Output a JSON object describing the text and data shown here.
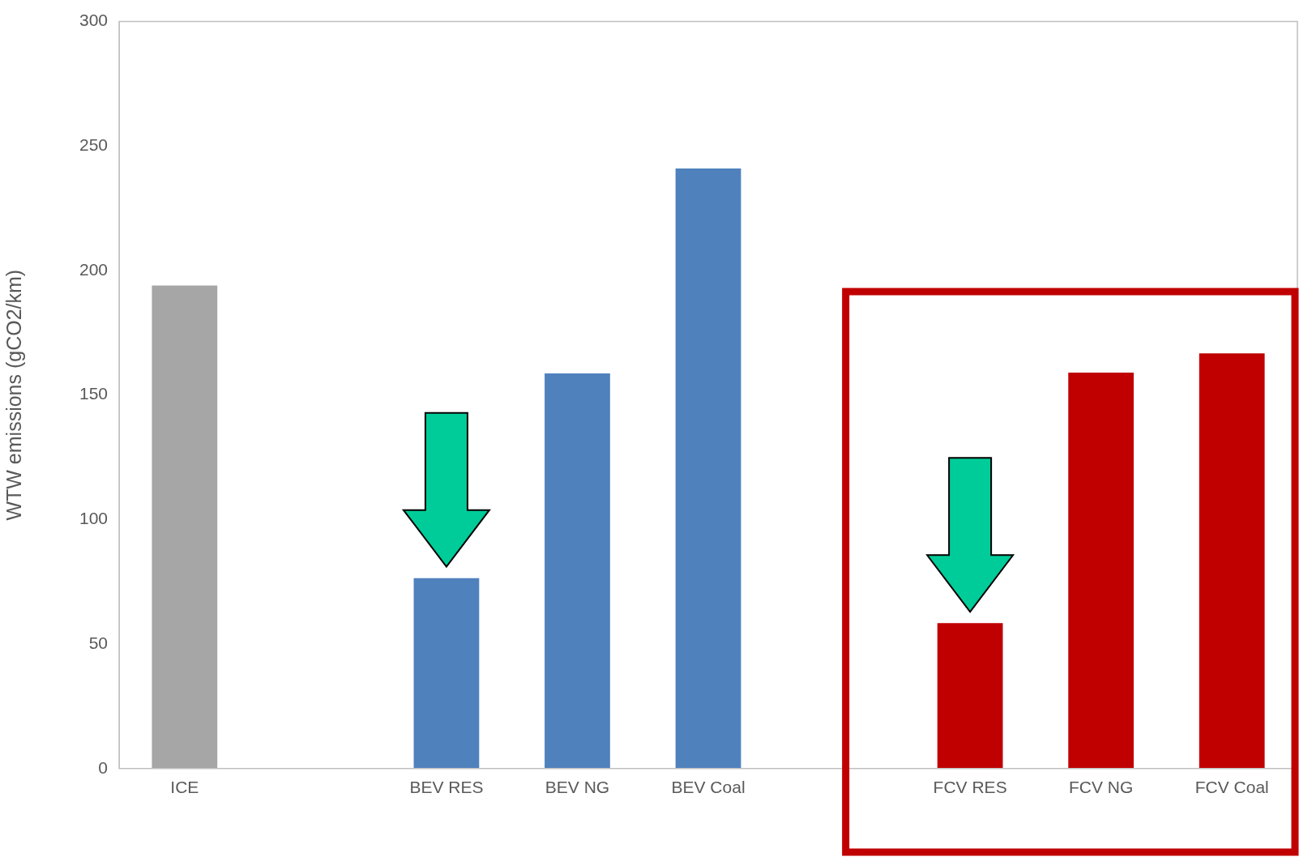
{
  "chart_data": {
    "type": "bar",
    "ylabel": "WTW emissions (gCO2/km)",
    "categories": [
      "ICE",
      null,
      "BEV RES",
      "BEV NG",
      "BEV Coal",
      null,
      "FCV RES",
      "FCV NG",
      "FCV Coal"
    ],
    "values": [
      194,
      null,
      76.5,
      158.7,
      241,
      null,
      58.4,
      159,
      166.7
    ],
    "colors": [
      "#a6a6a6",
      "#4f81bd",
      "#4f81bd",
      "#4f81bd",
      "#4f81bd",
      "#c00000",
      "#c00000",
      "#c00000",
      "#c00000"
    ],
    "ylim": [
      0,
      300
    ],
    "yticks": [
      0,
      50,
      100,
      150,
      200,
      250,
      300
    ],
    "grid": false,
    "legend": false
  }
}
